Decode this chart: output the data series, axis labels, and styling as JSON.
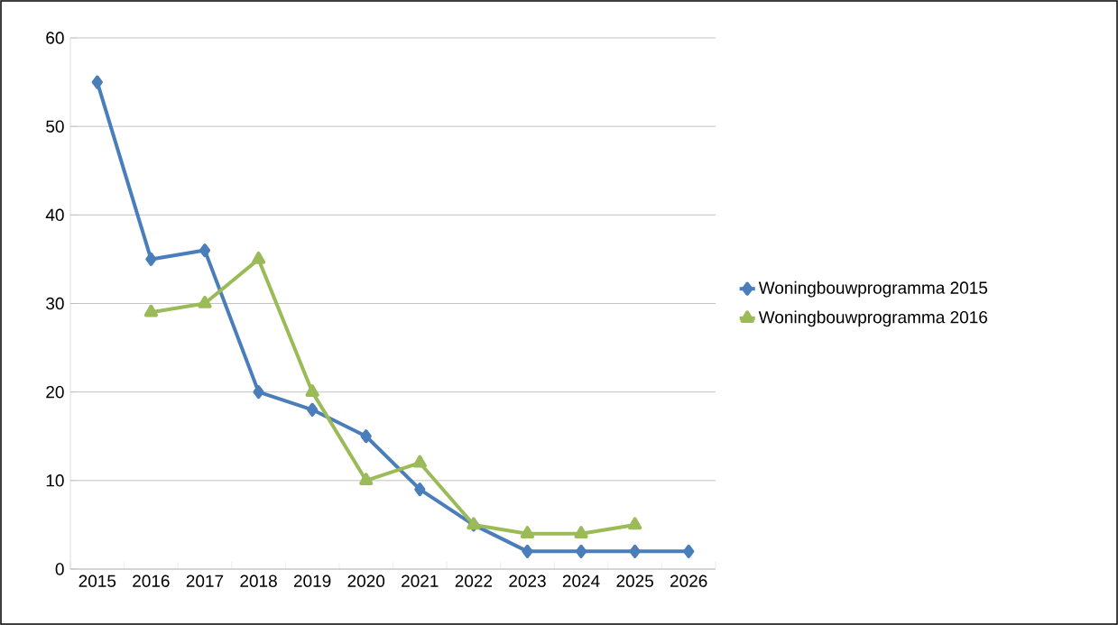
{
  "chart_data": {
    "type": "line",
    "categories": [
      "2015",
      "2016",
      "2017",
      "2018",
      "2019",
      "2020",
      "2021",
      "2022",
      "2023",
      "2024",
      "2025",
      "2026"
    ],
    "series": [
      {
        "name": "Woningbouwprogramma 2015",
        "color": "#4a7ebb",
        "marker": "diamond",
        "values": [
          55,
          35,
          36,
          20,
          18,
          15,
          9,
          5,
          2,
          2,
          2,
          2
        ]
      },
      {
        "name": "Woningbouwprogramma 2016",
        "color": "#9bbb59",
        "marker": "triangle",
        "values": [
          null,
          29,
          30,
          35,
          20,
          10,
          12,
          5,
          4,
          4,
          5,
          null
        ]
      }
    ],
    "ylim": [
      0,
      60
    ],
    "yticks": [
      0,
      10,
      20,
      30,
      40,
      50,
      60
    ],
    "grid": "y",
    "legend": "right",
    "line_style": "solid"
  }
}
